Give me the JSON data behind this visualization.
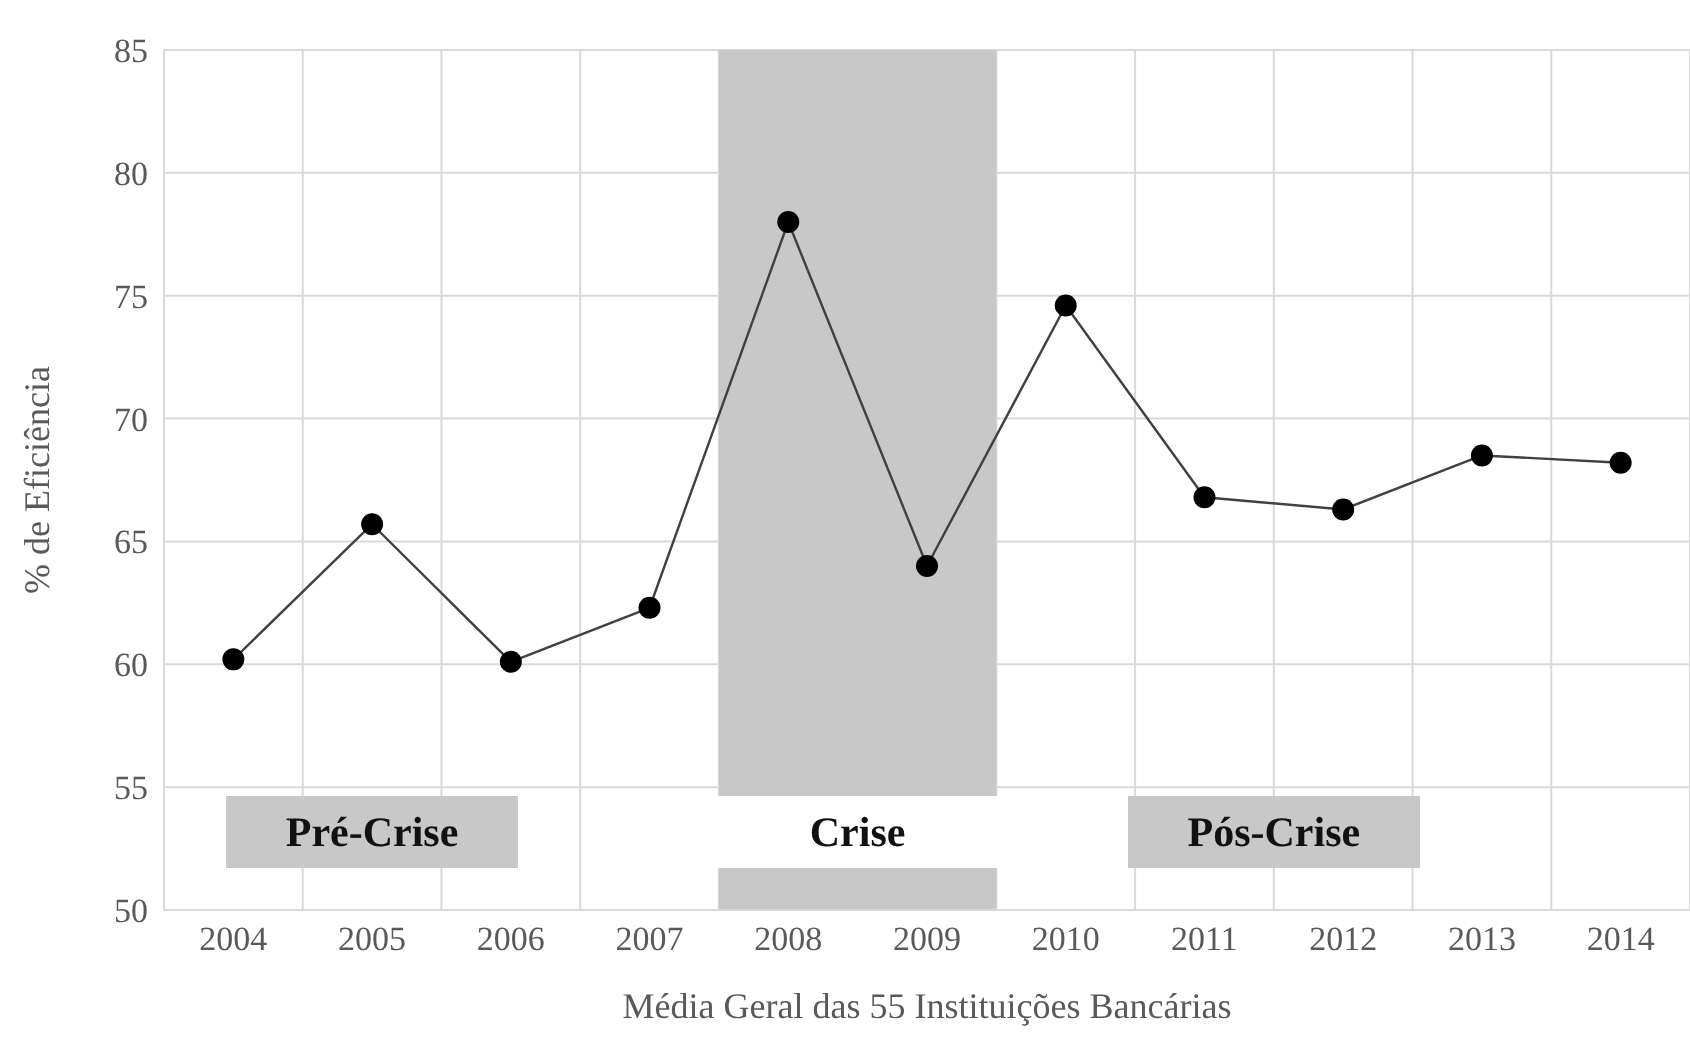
{
  "chart_data": {
    "type": "line",
    "xlabel": "Média Geral das 55 Instituições Bancárias",
    "ylabel": "% de Eficiência",
    "categories": [
      "2004",
      "2005",
      "2006",
      "2007",
      "2008",
      "2009",
      "2010",
      "2011",
      "2012",
      "2013",
      "2014"
    ],
    "series": [
      {
        "color": "#000000",
        "values": [
          60.2,
          65.7,
          60.1,
          62.3,
          78.0,
          64.0,
          74.6,
          66.8,
          66.3,
          68.5,
          68.2
        ]
      }
    ],
    "ylim": [
      50,
      85
    ],
    "yticks": [
      50,
      55,
      60,
      65,
      70,
      75,
      80,
      85
    ],
    "grid": true,
    "marker": "circle",
    "line_style": "solid",
    "legend": false,
    "bands": [
      {
        "axis": "x",
        "from": "2008",
        "to": "2009",
        "label": "Crise",
        "color": "#c8c8c8"
      }
    ],
    "annotations": [
      "Pré-Crise",
      "Pós-Crise"
    ]
  }
}
